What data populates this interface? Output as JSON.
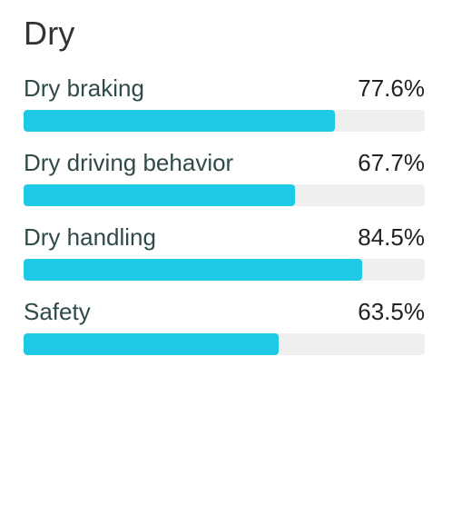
{
  "section": {
    "title": "Dry"
  },
  "metrics": [
    {
      "label": "Dry braking",
      "value_text": "77.6%",
      "value": 77.6
    },
    {
      "label": "Dry driving behavior",
      "value_text": "67.7%",
      "value": 67.7
    },
    {
      "label": "Dry handling",
      "value_text": "84.5%",
      "value": 84.5
    },
    {
      "label": "Safety",
      "value_text": "63.5%",
      "value": 63.5
    }
  ],
  "colors": {
    "bar_fill": "#1ec9e6",
    "bar_track": "#efefef",
    "label_text": "#2f4a49",
    "value_text": "#222222"
  }
}
